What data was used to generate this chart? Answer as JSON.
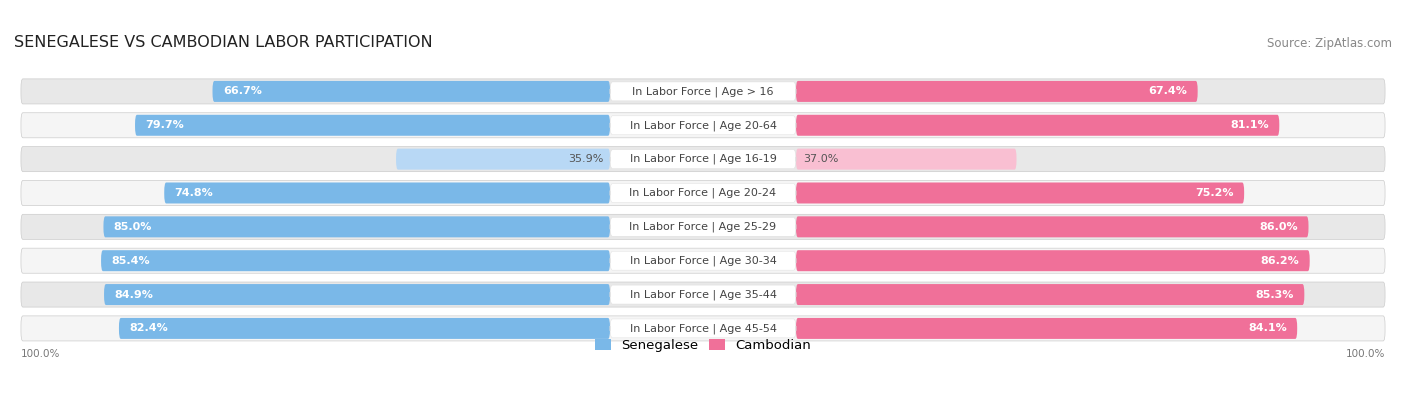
{
  "title": "SENEGALESE VS CAMBODIAN LABOR PARTICIPATION",
  "source": "Source: ZipAtlas.com",
  "categories": [
    "In Labor Force | Age > 16",
    "In Labor Force | Age 20-64",
    "In Labor Force | Age 16-19",
    "In Labor Force | Age 20-24",
    "In Labor Force | Age 25-29",
    "In Labor Force | Age 30-34",
    "In Labor Force | Age 35-44",
    "In Labor Force | Age 45-54"
  ],
  "senegalese": [
    66.7,
    79.7,
    35.9,
    74.8,
    85.0,
    85.4,
    84.9,
    82.4
  ],
  "cambodian": [
    67.4,
    81.1,
    37.0,
    75.2,
    86.0,
    86.2,
    85.3,
    84.1
  ],
  "sen_color_full": "#7ab8e8",
  "sen_color_light": "#b8d8f5",
  "cam_color_full": "#f07099",
  "cam_color_light": "#f9bfd2",
  "row_bg_dark": "#e8e8e8",
  "row_bg_light": "#f5f5f5",
  "title_fontsize": 11.5,
  "source_fontsize": 8.5,
  "label_fontsize": 8,
  "value_fontsize": 8,
  "legend_fontsize": 9.5,
  "axis_label_left": "100.0%",
  "axis_label_right": "100.0%"
}
